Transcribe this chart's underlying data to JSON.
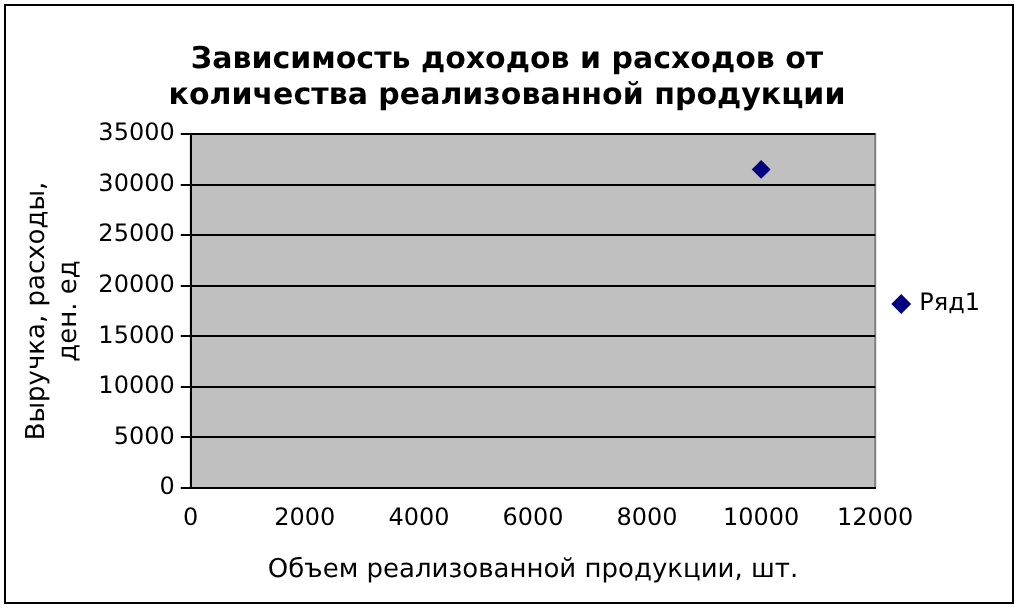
{
  "chart_data": {
    "type": "scatter",
    "title": "Зависимость доходов и расходов от количества реализованной продукции",
    "xlabel": "Объем реализованной продукции, шт.",
    "ylabel": "Выручка, расходы, ден. ед",
    "series": [
      {
        "name": "Ряд1",
        "color": "#000080",
        "x": [
          10000
        ],
        "values": [
          31500
        ]
      }
    ],
    "xlim": [
      0,
      12000
    ],
    "xticks": [
      0,
      2000,
      4000,
      6000,
      8000,
      10000,
      12000
    ],
    "ylim": [
      0,
      35000
    ],
    "yticks": [
      0,
      5000,
      10000,
      15000,
      20000,
      25000,
      30000,
      35000
    ],
    "grid": "y",
    "legend": "right",
    "marker": "diamond"
  }
}
